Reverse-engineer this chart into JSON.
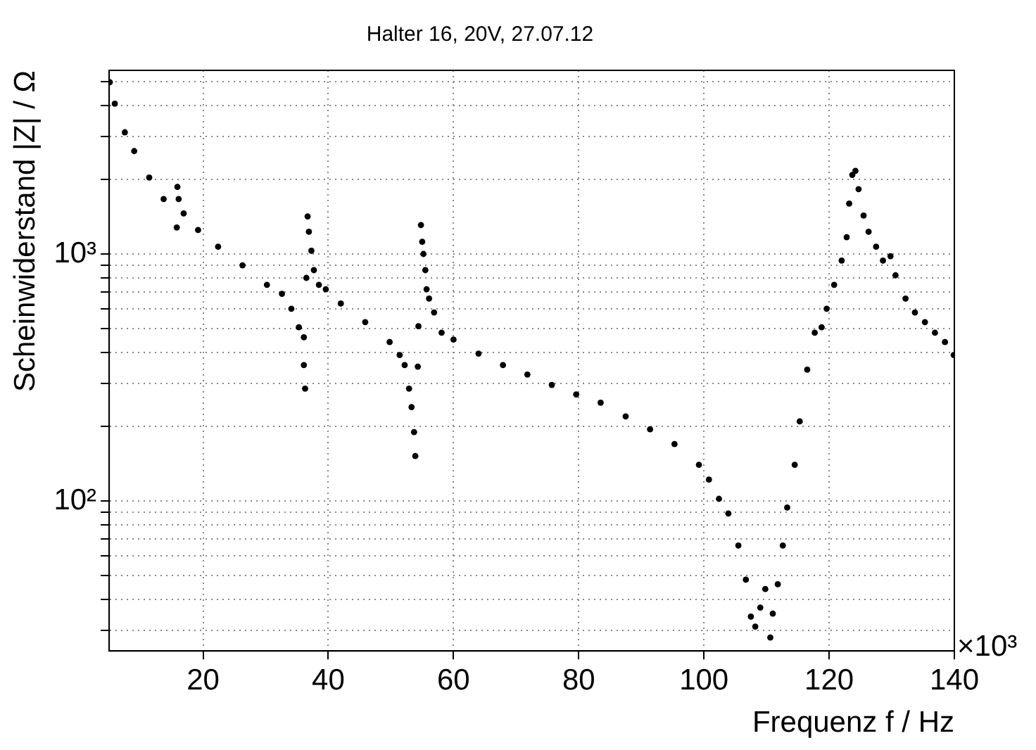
{
  "chart_data": {
    "type": "scatter",
    "title": "Halter 16, 20V, 27.07.12",
    "xlabel": "Frequenz f / Hz",
    "ylabel": "Scheinwiderstand |Z| / Ω",
    "annotations": [
      "×10³"
    ],
    "log": "y",
    "grid": true,
    "legend": false,
    "marker": "circle",
    "xlim": [
      5,
      140
    ],
    "xticks": [
      20,
      40,
      60,
      80,
      100,
      120,
      140
    ],
    "ylim": [
      24.7,
      5540
    ],
    "yticks": [
      {
        "value": 30,
        "label": null
      },
      {
        "value": 40,
        "label": null
      },
      {
        "value": 50,
        "label": null
      },
      {
        "value": 60,
        "label": null
      },
      {
        "value": 70,
        "label": null
      },
      {
        "value": 80,
        "label": null
      },
      {
        "value": 90,
        "label": null
      },
      {
        "value": 100,
        "label": "10²"
      },
      {
        "value": 200,
        "label": null
      },
      {
        "value": 300,
        "label": null
      },
      {
        "value": 400,
        "label": null
      },
      {
        "value": 500,
        "label": null
      },
      {
        "value": 600,
        "label": null
      },
      {
        "value": 700,
        "label": null
      },
      {
        "value": 800,
        "label": null
      },
      {
        "value": 900,
        "label": null
      },
      {
        "value": 1000,
        "label": "10³"
      },
      {
        "value": 2000,
        "label": null
      },
      {
        "value": 3000,
        "label": null
      },
      {
        "value": 4000,
        "label": null
      },
      {
        "value": 5000,
        "label": null
      }
    ],
    "series": [
      {
        "color": "#000000",
        "x": [
          5.1,
          5.9,
          7.5,
          9.0,
          11.4,
          13.7,
          16.9,
          19.2,
          22.4,
          26.3,
          30.2,
          32.6,
          34.1,
          35.3,
          36.1,
          36.1,
          36.3,
          15.9,
          16.1,
          15.8,
          36.7,
          36.9,
          37.3,
          37.7,
          36.5,
          38.5,
          39.6,
          42.0,
          45.9,
          49.8,
          51.4,
          52.2,
          52.9,
          53.3,
          53.7,
          53.9,
          54.4,
          54.3,
          54.8,
          55.0,
          55.2,
          55.5,
          55.7,
          56.1,
          56.9,
          58.1,
          60.0,
          64.0,
          67.9,
          71.8,
          75.7,
          79.6,
          83.5,
          87.5,
          91.4,
          95.3,
          99.2,
          100.8,
          102.4,
          103.9,
          105.5,
          106.7,
          107.5,
          108.2,
          109.0,
          109.8,
          110.6,
          111.0,
          111.8,
          112.6,
          113.3,
          114.5,
          115.3,
          116.5,
          117.7,
          118.8,
          119.6,
          120.8,
          122.0,
          122.8,
          123.2,
          123.7,
          124.2,
          124.7,
          125.5,
          126.3,
          127.5,
          128.6,
          129.8,
          130.6,
          132.2,
          133.7,
          135.3,
          136.9,
          138.5,
          139.9
        ],
        "values": [
          4960,
          4060,
          3110,
          2610,
          2040,
          1670,
          1460,
          1250,
          1070,
          900,
          750,
          690,
          600,
          505,
          460,
          355,
          285,
          1870,
          1670,
          1280,
          1420,
          1230,
          1030,
          860,
          800,
          750,
          720,
          630,
          530,
          440,
          390,
          355,
          285,
          240,
          190,
          152,
          510,
          350,
          1310,
          1120,
          1000,
          860,
          720,
          660,
          580,
          480,
          450,
          395,
          355,
          325,
          295,
          270,
          250,
          220,
          195,
          170,
          140,
          122,
          102,
          89,
          66,
          48,
          34,
          31,
          37,
          44,
          28,
          35,
          46,
          66,
          94,
          140,
          210,
          340,
          480,
          505,
          600,
          750,
          940,
          1170,
          1600,
          2090,
          2170,
          1830,
          1430,
          1230,
          1070,
          940,
          980,
          820,
          660,
          580,
          530,
          480,
          440,
          390
        ]
      }
    ]
  }
}
